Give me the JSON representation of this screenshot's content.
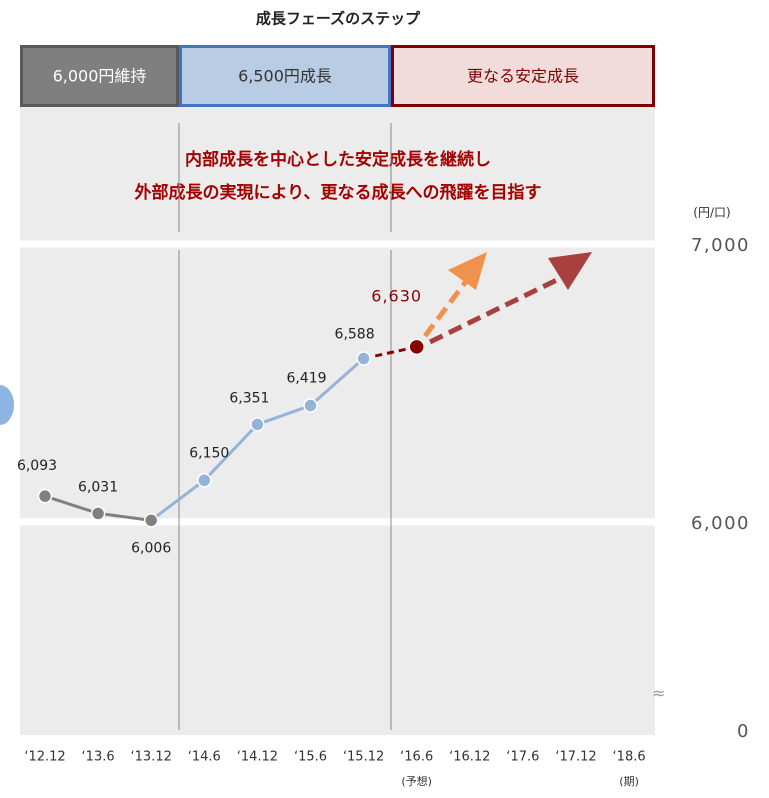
{
  "chart_data": {
    "type": "line",
    "title": "成長フェーズのステップ",
    "phases": [
      {
        "label": "6,000円維持",
        "fill": "#7f7f7f",
        "border": "#595959",
        "text_color": "#ffffff"
      },
      {
        "label": "6,500円成長",
        "fill": "#b8cce4",
        "border": "#4472c4",
        "text_color": "#333333"
      },
      {
        "label": "更なる安定成長",
        "fill": "#f2dcdb",
        "border": "#7f0000",
        "text_color": "#7f0000"
      }
    ],
    "annotation": [
      "内部成長を中心とした安定成長を継続し",
      "外部成長の実現により、更なる成長への飛躍を目指す"
    ],
    "y_unit": "(円/口)",
    "categories": [
      "‘12.12",
      "‘13.6",
      "‘13.12",
      "‘14.6",
      "‘14.12",
      "‘15.6",
      "‘15.12",
      "‘16.6",
      "‘16.12",
      "‘17.6",
      "‘17.12",
      "‘18.6"
    ],
    "category_notes": [
      null,
      null,
      null,
      null,
      null,
      null,
      null,
      "(予想)",
      null,
      null,
      null,
      "(期)"
    ],
    "values": [
      6093,
      6031,
      6006,
      6150,
      6351,
      6419,
      6588,
      6630,
      null,
      null,
      null,
      null
    ],
    "value_labels": [
      "6,093",
      "6,031",
      "6,006",
      "6,150",
      "6,351",
      "6,419",
      "6,588",
      "6,630",
      null,
      null,
      null,
      null
    ],
    "colors": [
      "#808080",
      "#808080",
      "#808080",
      "#95b3d7",
      "#95b3d7",
      "#95b3d7",
      "#95b3d7",
      "#8b0000",
      null,
      null,
      null,
      null
    ],
    "ylim": [
      0,
      7500
    ],
    "yticks": [
      0,
      {
        "value": 6000,
        "label": "6,000"
      },
      {
        "value": 7000,
        "label": "7,000"
      }
    ],
    "y_axis_break": true
  }
}
